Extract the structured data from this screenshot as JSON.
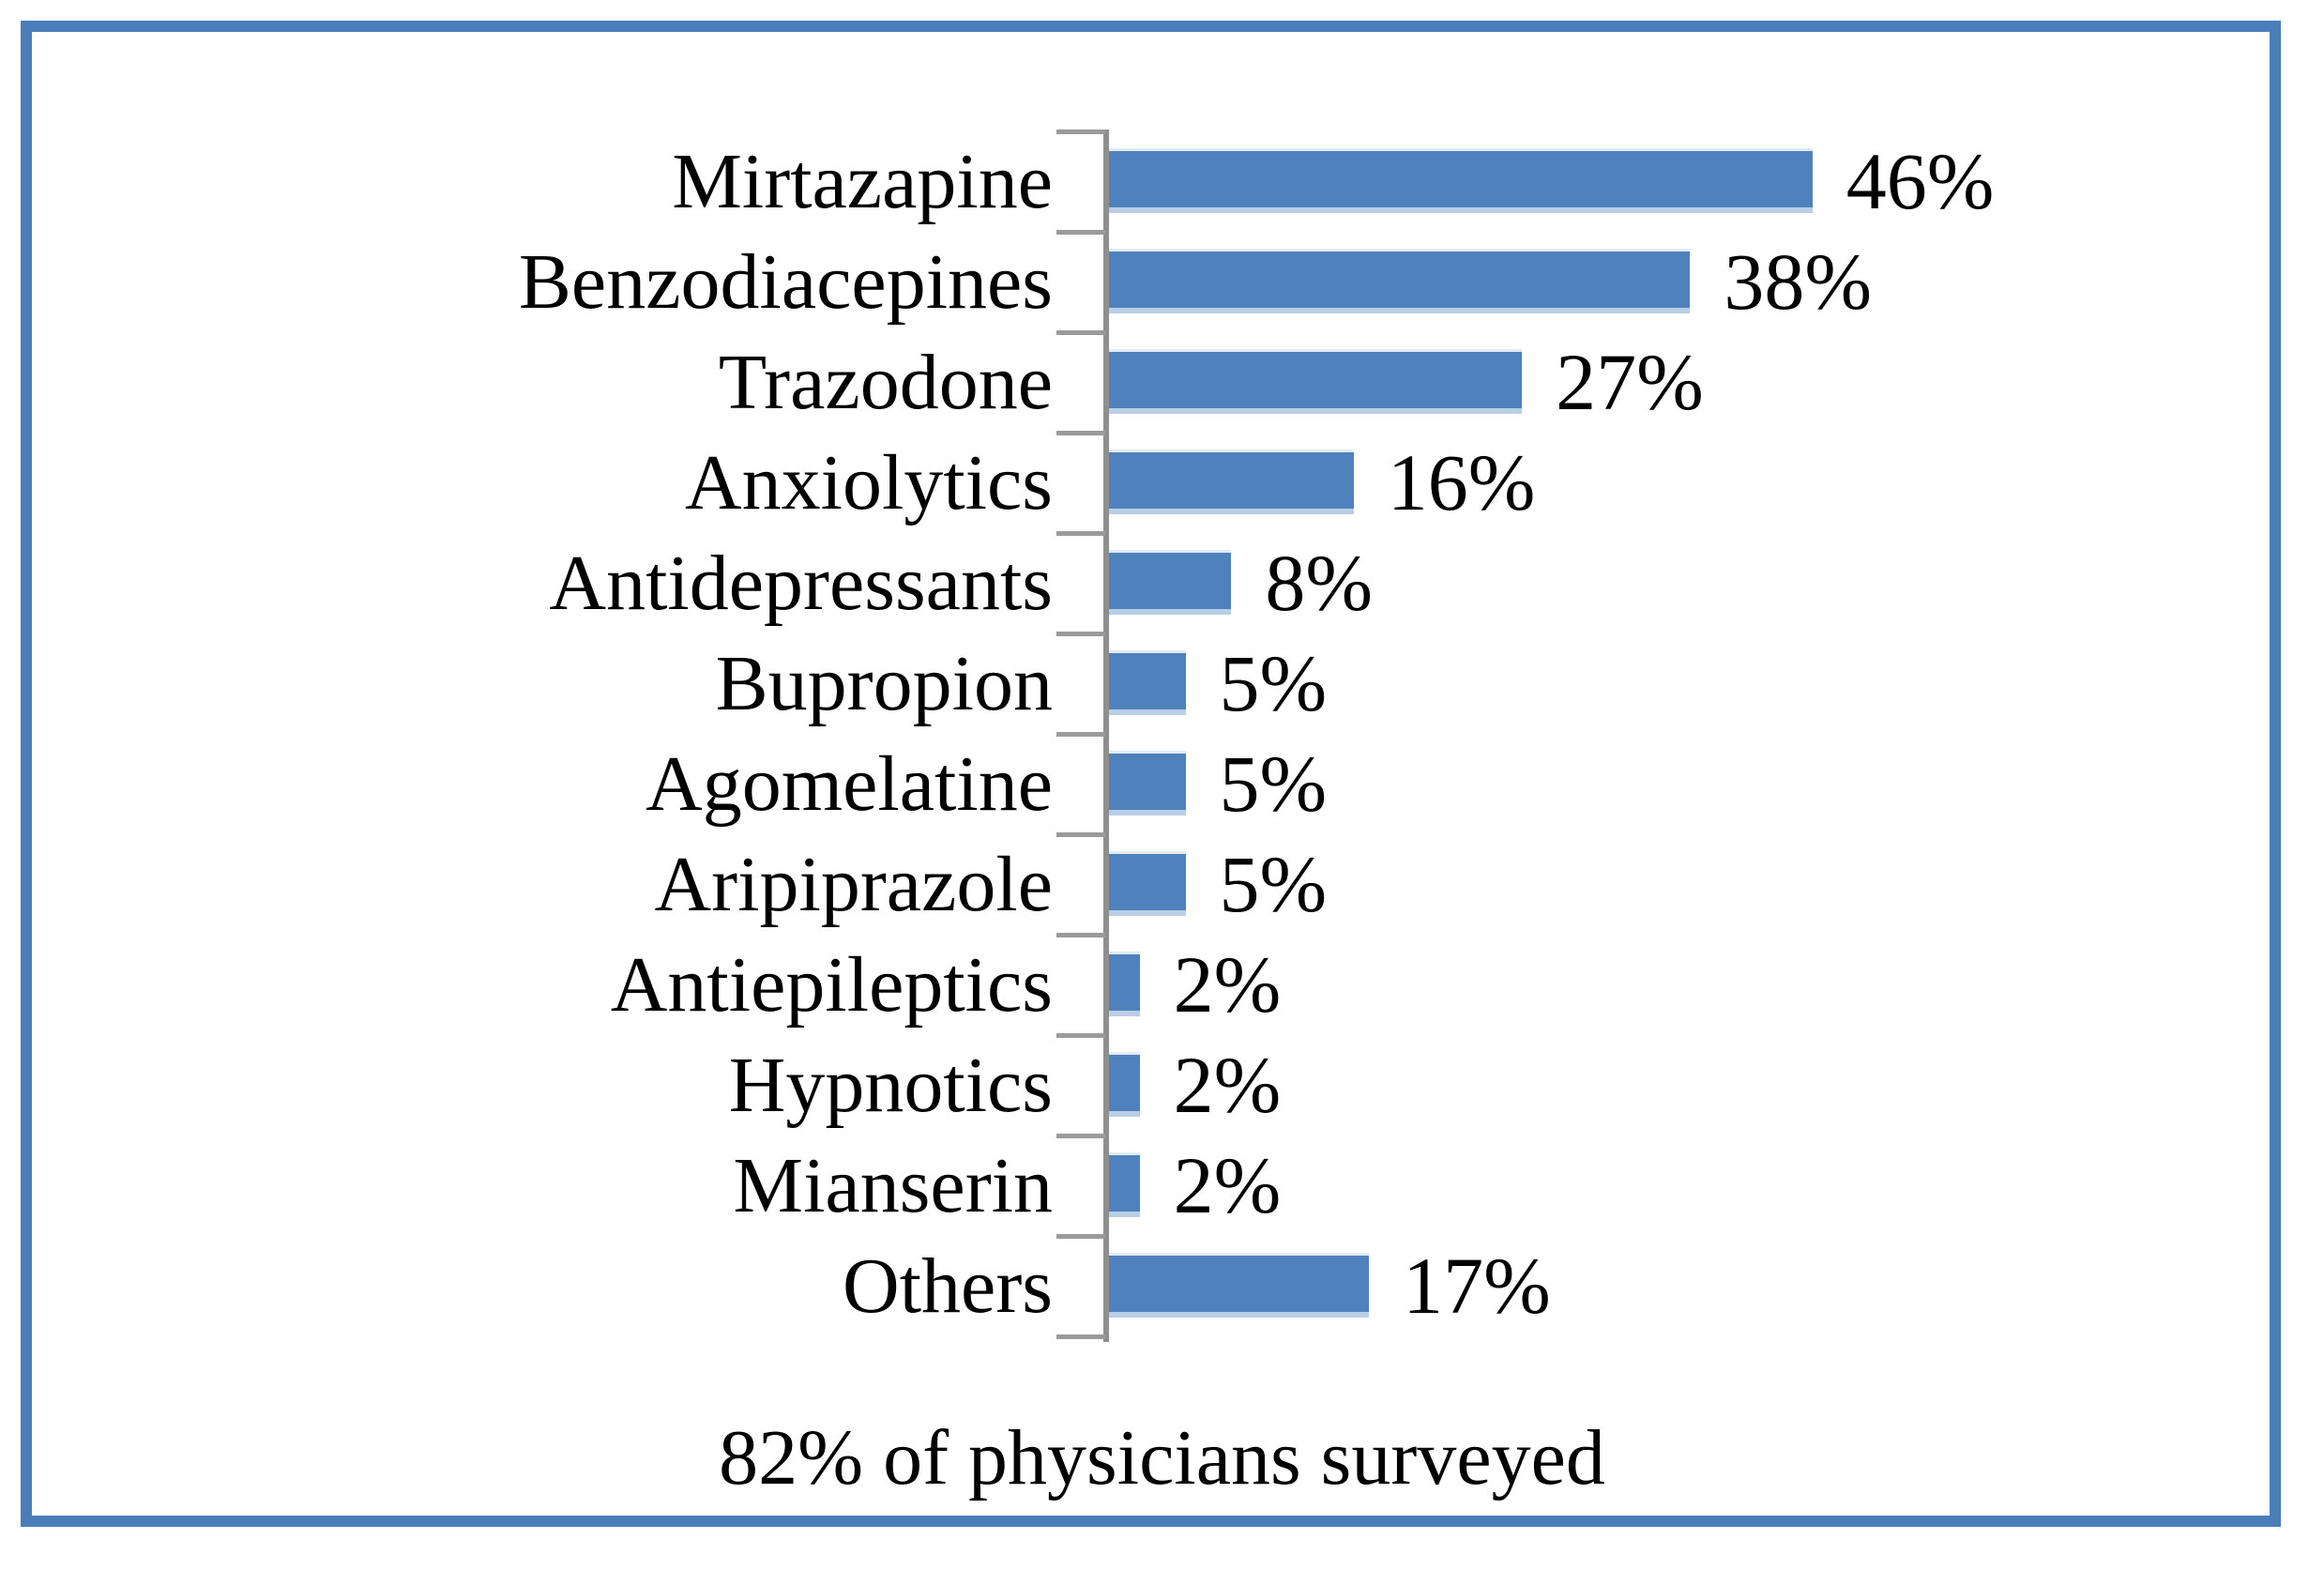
{
  "chart_data": {
    "type": "bar",
    "orientation": "horizontal",
    "title": "",
    "caption": "82% of physicians surveyed",
    "categories": [
      "Mirtazapine",
      "Benzodiacepines",
      "Trazodone",
      "Anxiolytics",
      "Antidepressants",
      "Bupropion",
      "Agomelatine",
      "Aripiprazole",
      "Antiepileptics",
      "Hypnotics",
      "Mianserin",
      "Others"
    ],
    "values": [
      46,
      38,
      27,
      16,
      8,
      5,
      5,
      5,
      2,
      2,
      2,
      17
    ],
    "value_labels": [
      "46%",
      "38%",
      "27%",
      "16%",
      "8%",
      "5%",
      "5%",
      "5%",
      "2%",
      "2%",
      "2%",
      "17%"
    ],
    "xlim": [
      0,
      50
    ],
    "grid": false,
    "legend_position": "none",
    "data_labels_position": "outside-end",
    "colors": {
      "bar_fill": "#4f81bd",
      "bar_bottom_edge": "#bacee6",
      "bar_top_edge": "#e2eaf5",
      "axis": "#8f8f8f",
      "tick": "#9b9b9b",
      "frame_border": "#4a7ebb",
      "text": "#000000",
      "background": "#ffffff"
    }
  }
}
